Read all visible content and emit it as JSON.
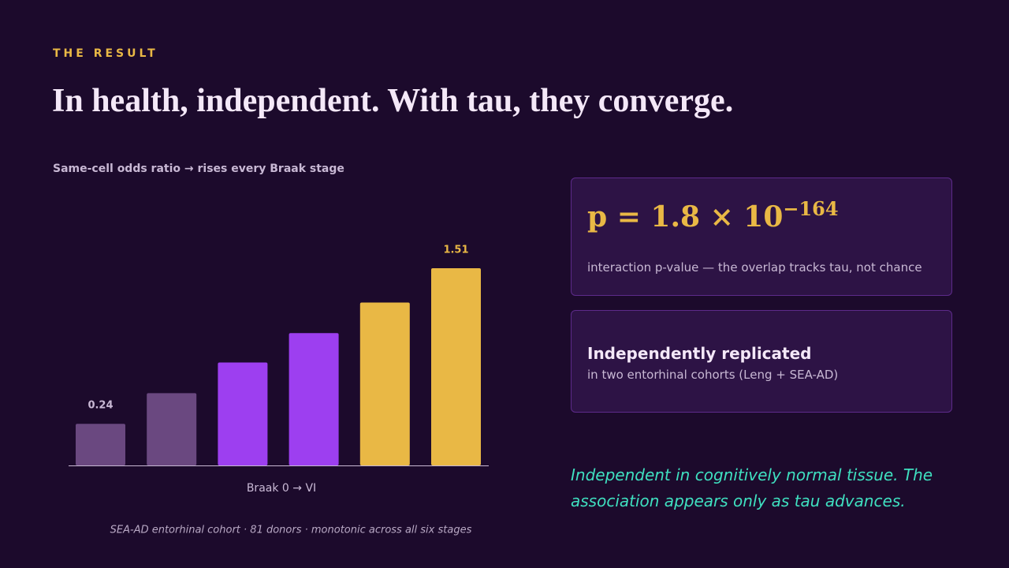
{
  "eyebrow": "THE RESULT",
  "title": "In health, independent. With tau, they converge.",
  "chart_data": {
    "type": "bar",
    "subtitle": "Same-cell odds ratio  →  rises every Braak stage",
    "x_label": "Braak 0  →  VI",
    "caption": "SEA-AD entorhinal cohort · 81 donors · monotonic across all six stages",
    "categories": [
      null,
      null,
      null,
      null,
      null,
      null
    ],
    "values": [
      0.24,
      0.49,
      0.74,
      0.98,
      1.23,
      1.51
    ],
    "value_labels": [
      "0.24",
      null,
      null,
      null,
      null,
      "1.51"
    ],
    "colors": [
      "#6a4880",
      "#6a4880",
      "#9d3ff0",
      "#9d3ff0",
      "#e9b845",
      "#e9b845"
    ],
    "ylim": [
      -0.1,
      1.6
    ]
  },
  "stat_card": {
    "base": "p = 1.8 × 10",
    "exponent": "−164",
    "text": "interaction p-value — the overlap tracks tau, not chance"
  },
  "replication_card": {
    "title": "Independently replicated",
    "text": "in two entorhinal cohorts (Leng + SEA-AD)"
  },
  "quote": [
    "Independent in cognitively normal tissue.  The",
    "association appears only as tau advances."
  ]
}
